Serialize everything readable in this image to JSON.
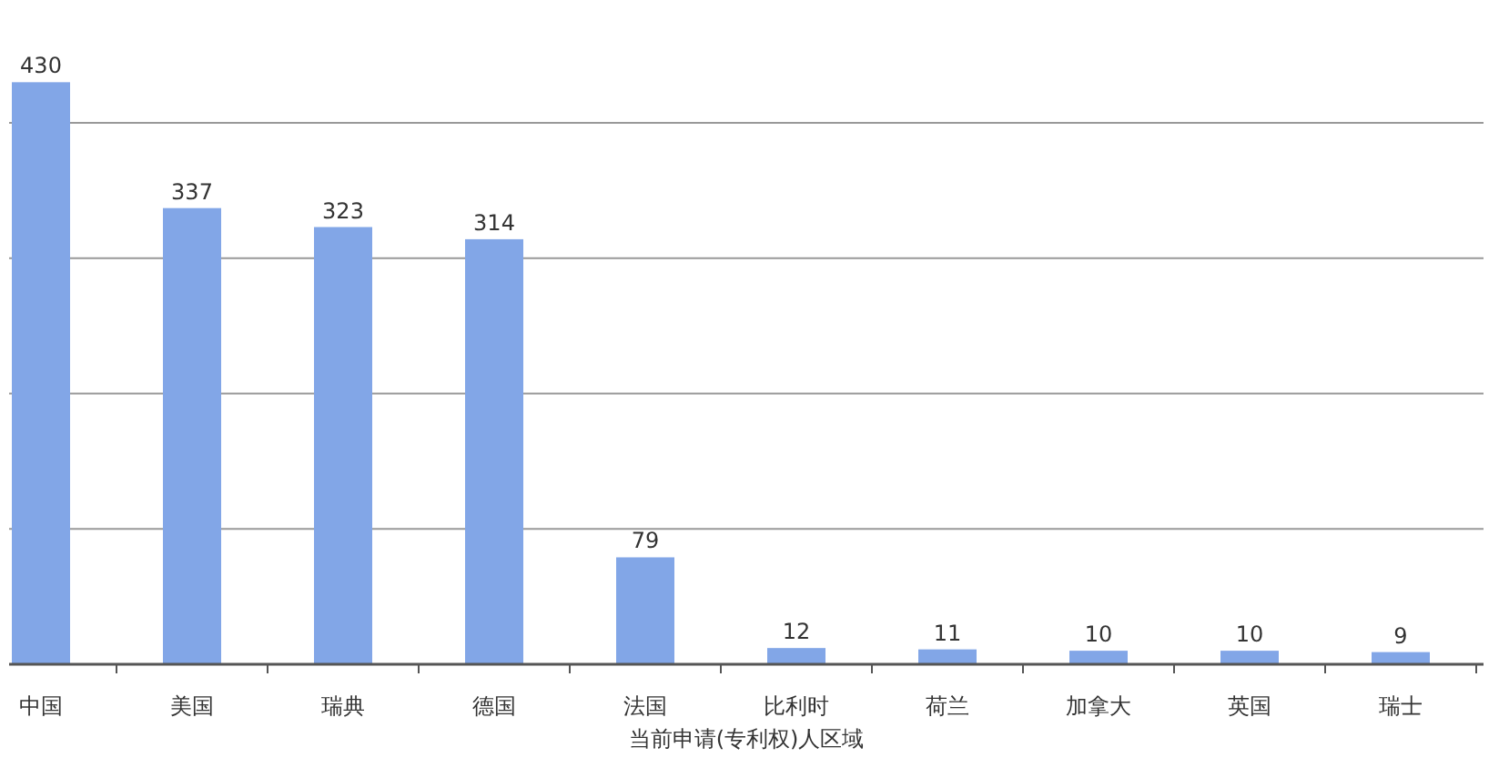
{
  "chart_data": {
    "type": "bar",
    "xlabel": "当前申请(专利权)人区域",
    "categories": [
      "中国",
      "美国",
      "瑞典",
      "德国",
      "法国",
      "比利时",
      "荷兰",
      "加拿大",
      "英国",
      "瑞士"
    ],
    "values": [
      430,
      337,
      323,
      314,
      79,
      12,
      11,
      10,
      10,
      9
    ],
    "color": "#82a6e7",
    "data_labels": true,
    "yticks": [
      {
        "value": 0,
        "label": null
      },
      {
        "value": 100,
        "label": null
      },
      {
        "value": 200,
        "label": null
      },
      {
        "value": 300,
        "label": null
      },
      {
        "value": 400,
        "label": null
      }
    ],
    "tick_labels": "x",
    "grid": "y"
  }
}
